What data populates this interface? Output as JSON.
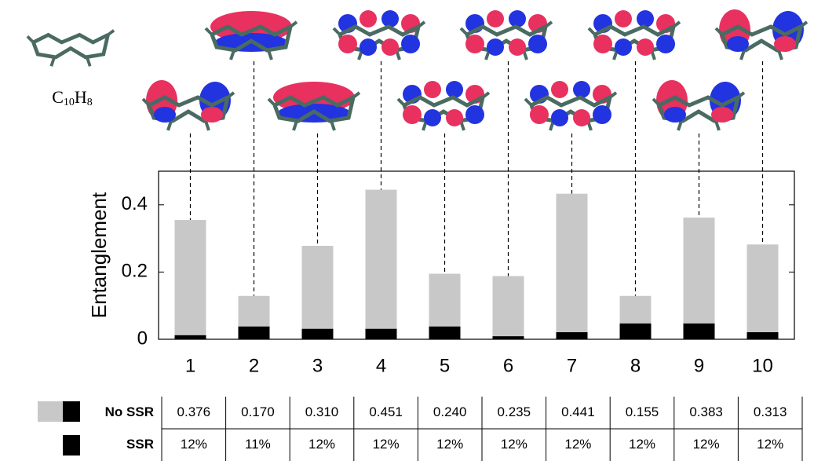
{
  "formula": [
    "C",
    "10",
    "H",
    "8"
  ],
  "chart_data": {
    "type": "bar",
    "y_label": "Entanglement",
    "categories": [
      "1",
      "2",
      "3",
      "4",
      "5",
      "6",
      "7",
      "8",
      "9",
      "10"
    ],
    "series": [
      {
        "name": "No SSR",
        "color": "#c8c8c8",
        "values": [
          0.355,
          0.129,
          0.278,
          0.445,
          0.195,
          0.188,
          0.433,
          0.129,
          0.362,
          0.282
        ]
      },
      {
        "name": "SSR",
        "color": "#000000",
        "values": [
          0.012,
          0.038,
          0.031,
          0.031,
          0.038,
          0.009,
          0.021,
          0.047,
          0.047,
          0.021
        ]
      }
    ],
    "ylim": [
      0,
      0.5
    ],
    "yticks": [
      0,
      0.2,
      0.4
    ]
  },
  "table": {
    "rows": [
      [
        "0.376",
        "0.170",
        "0.310",
        "0.451",
        "0.240",
        "0.235",
        "0.441",
        "0.155",
        "0.383",
        "0.313"
      ],
      [
        "12%",
        "11%",
        "12%",
        "12%",
        "12%",
        "12%",
        "12%",
        "12%",
        "12%",
        "12%"
      ]
    ]
  }
}
